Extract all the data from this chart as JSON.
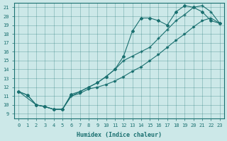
{
  "xlabel": "Humidex (Indice chaleur)",
  "ylabel": "",
  "bg_color": "#cce8e8",
  "line_color": "#1a7070",
  "xlim": [
    -0.5,
    23.5
  ],
  "ylim": [
    8.5,
    21.5
  ],
  "xticks": [
    0,
    1,
    2,
    3,
    4,
    5,
    6,
    7,
    8,
    9,
    10,
    11,
    12,
    13,
    14,
    15,
    16,
    17,
    18,
    19,
    20,
    21,
    22,
    23
  ],
  "yticks": [
    9,
    10,
    11,
    12,
    13,
    14,
    15,
    16,
    17,
    18,
    19,
    20,
    21
  ],
  "line1_x": [
    0,
    1,
    2,
    3,
    4,
    5,
    6,
    7,
    8,
    9,
    10,
    11,
    12,
    13,
    14,
    15,
    16,
    17,
    18,
    19,
    20,
    21,
    22,
    23
  ],
  "line1_y": [
    11.5,
    11.1,
    10.0,
    9.8,
    9.5,
    9.5,
    11.0,
    11.3,
    11.8,
    12.0,
    12.3,
    12.7,
    13.2,
    13.8,
    14.3,
    15.0,
    15.7,
    16.5,
    17.3,
    18.0,
    18.8,
    19.5,
    19.8,
    19.2
  ],
  "line2_x": [
    0,
    1,
    2,
    3,
    4,
    5,
    6,
    7,
    8,
    9,
    10,
    11,
    12,
    13,
    14,
    15,
    16,
    17,
    18,
    19,
    20,
    21,
    22,
    23
  ],
  "line2_y": [
    11.5,
    11.1,
    10.0,
    9.8,
    9.5,
    9.5,
    11.2,
    11.5,
    12.0,
    12.5,
    13.2,
    14.0,
    15.5,
    18.3,
    19.8,
    19.8,
    19.5,
    19.0,
    20.5,
    21.2,
    21.0,
    20.5,
    19.5,
    19.2
  ],
  "line3_x": [
    0,
    2,
    3,
    4,
    5,
    6,
    7,
    8,
    9,
    10,
    11,
    12,
    13,
    14,
    15,
    16,
    17,
    18,
    19,
    20,
    21,
    22,
    23
  ],
  "line3_y": [
    11.5,
    10.0,
    9.8,
    9.5,
    9.5,
    11.0,
    11.5,
    12.0,
    12.5,
    13.2,
    14.0,
    15.0,
    15.5,
    16.0,
    16.5,
    17.5,
    18.5,
    19.5,
    20.2,
    21.0,
    21.2,
    20.5,
    19.2
  ]
}
